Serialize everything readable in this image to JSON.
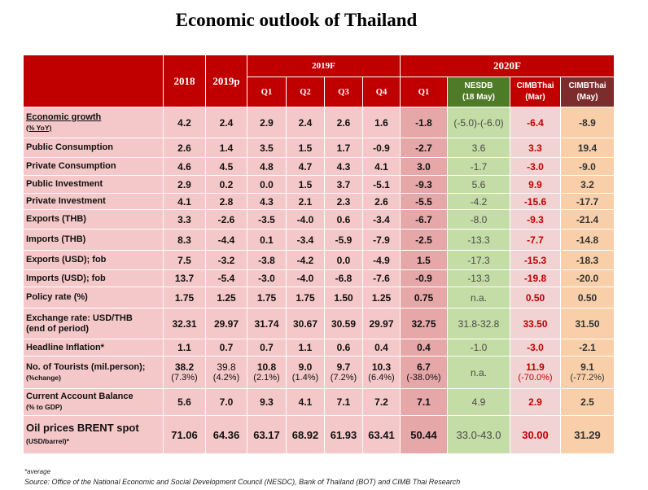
{
  "title": "Economic outlook of Thailand",
  "header": {
    "y2018": "2018",
    "y2019p": "2019p",
    "group_2019f": "2019F",
    "group_2020f": "2020F",
    "q_labels": [
      "Q1",
      "Q2",
      "Q3",
      "Q4"
    ],
    "q1_2020": "Q1",
    "nesdb_line1": "NESDB",
    "nesdb_line2": "(18 May)",
    "cimb_mar_line1": "CIMBThai",
    "cimb_mar_line2": "(Mar)",
    "cimb_may_line1": "CIMBThai",
    "cimb_may_line2": "(May)"
  },
  "rows": [
    {
      "label": "Economic growth",
      "sub": "(% YoY)",
      "underline": true,
      "cells": [
        "4.2",
        "2.4",
        "2.9",
        "2.4",
        "2.6",
        "1.6",
        "-1.8",
        "(-5.0)-(-6.0)",
        "-6.4",
        "-8.9"
      ]
    },
    {
      "label": "Public Consumption",
      "sub": "",
      "cells": [
        "2.6",
        "1.4",
        "3.5",
        "1.5",
        "1.7",
        "-0.9",
        "-2.7",
        "3.6",
        "3.3",
        "19.4"
      ]
    },
    {
      "label": "Private Consumption",
      "sub": "",
      "cells": [
        "4.6",
        "4.5",
        "4.8",
        "4.7",
        "4.3",
        "4.1",
        "3.0",
        "-1.7",
        "-3.0",
        "-9.0"
      ]
    },
    {
      "label": "Public Investment",
      "sub": "",
      "cells": [
        "2.9",
        "0.2",
        "0.0",
        "1.5",
        "3.7",
        "-5.1",
        "-9.3",
        "5.6",
        "9.9",
        "3.2"
      ]
    },
    {
      "label": "Private Investment",
      "sub": "",
      "cells": [
        "4.1",
        "2.8",
        "4.3",
        "2.1",
        "2.3",
        "2.6",
        "-5.5",
        "-4.2",
        "-15.6",
        "-17.7"
      ]
    },
    {
      "label": "Exports (THB)",
      "sub": "",
      "cells": [
        "3.3",
        "-2.6",
        "-3.5",
        "-4.0",
        "0.6",
        "-3.4",
        "-6.7",
        "-8.0",
        "-9.3",
        "-21.4"
      ]
    },
    {
      "label": "Imports (THB)",
      "sub": "",
      "cells": [
        "8.3",
        "-4.4",
        "0.1",
        "-3.4",
        "-5.9",
        "-7.9",
        "-2.5",
        "-13.3",
        "-7.7",
        "-14.8"
      ]
    },
    {
      "label": "Exports (USD); fob",
      "sub": "",
      "cells": [
        "7.5",
        "-3.2",
        "-3.8",
        "-4.2",
        "0.0",
        "-4.9",
        "1.5",
        "-17.3",
        "-15.3",
        "-18.3"
      ]
    },
    {
      "label": "Imports (USD); fob",
      "sub": "",
      "cells": [
        "13.7",
        "-5.4",
        "-3.0",
        "-4.0",
        "-6.8",
        "-7.6",
        "-0.9",
        "-13.3",
        "-19.8",
        "-20.0"
      ]
    },
    {
      "label": "Policy rate (%)",
      "sub": "",
      "cells": [
        "1.75",
        "1.25",
        "1.75",
        "1.75",
        "1.50",
        "1.25",
        "0.75",
        "n.a.",
        "0.50",
        "0.50"
      ]
    },
    {
      "label": "Exchange rate: USD/THB",
      "sub": "(end of period)",
      "subBig": true,
      "cells": [
        "32.31",
        "29.97",
        "31.74",
        "30.67",
        "30.59",
        "29.97",
        "32.75",
        "31.8-32.8",
        "33.50",
        "31.50"
      ]
    },
    {
      "label": "Headline Inflation*",
      "sub": "",
      "cells": [
        "1.1",
        "0.7",
        "0.7",
        "1.1",
        "0.6",
        "0.4",
        "0.4",
        "-1.0",
        "-3.0",
        "-2.1"
      ]
    },
    {
      "label": "No. of Tourists (mil.person);",
      "sub": "(%change)",
      "twoLine": true,
      "cells": [
        "38.2",
        "39.8",
        "10.8",
        "9.0",
        "9.7",
        "10.3",
        "6.7",
        "n.a.",
        "11.9",
        "9.1"
      ],
      "cells2": [
        "(7.3%)",
        "(4.2%)",
        "(2.1%)",
        "(1.4%)",
        "(7.2%)",
        "(6.4%)",
        "(-38.0%)",
        "",
        "(-70.0%)",
        "(-77.2%)"
      ]
    },
    {
      "label": "Current Account Balance",
      "sub": "(% to GDP)",
      "cells": [
        "5.6",
        "7.0",
        "9.3",
        "4.1",
        "7.1",
        "7.2",
        "7.1",
        "4.9",
        "2.9",
        "2.5"
      ]
    },
    {
      "label": "Oil prices BRENT spot",
      "sub": "(USD/barrel)*",
      "last": true,
      "cells": [
        "71.06",
        "64.36",
        "63.17",
        "68.92",
        "61.93",
        "63.41",
        "50.44",
        "33.0-43.0",
        "30.00",
        "31.29"
      ]
    }
  ],
  "footnote_average": "*average",
  "source": "Source: Office of the National Economic and Social Development Council (NESDC), Bank of Thailand (BOT) and  CIMB Thai Research",
  "colors": {
    "header_red": "#c00000",
    "nesdb_green": "#4f7a27",
    "cimb_may_brown": "#7b2c2c",
    "pink_cell": "#f4c7c8",
    "rose_cell": "#e6a7a9",
    "green_cell": "#c4dca5",
    "cimb_mar_cell": "#f2d3d4",
    "cimb_may_cell": "#f8cfa9"
  }
}
